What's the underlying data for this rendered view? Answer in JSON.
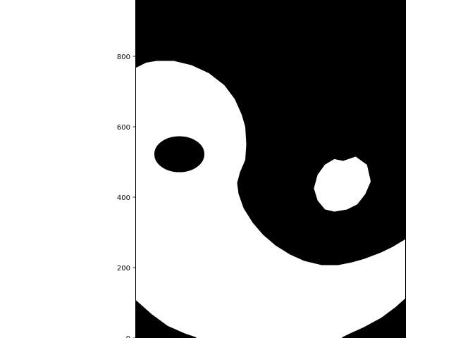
{
  "chart_data": {
    "type": "scatter",
    "title": "",
    "xlabel": "",
    "ylabel": "",
    "ylim": [
      0,
      960
    ],
    "xlim": [
      0,
      768
    ],
    "grid": false,
    "yticks": [
      0,
      200,
      400,
      600,
      800
    ],
    "ytick_labels": [
      "0",
      "200",
      "400",
      "600",
      "800"
    ],
    "background_color": "#ffffff",
    "regions": [
      {
        "name": "black-upper-left-arc",
        "color": "#000000",
        "polygon": [
          [
            0,
            860
          ],
          [
            20,
            880
          ],
          [
            60,
            905
          ],
          [
            110,
            930
          ],
          [
            170,
            948
          ],
          [
            230,
            960
          ],
          [
            0,
            960
          ]
        ]
      },
      {
        "name": "black-main-region",
        "color": "#000000",
        "polygon": [
          [
            0,
            770
          ],
          [
            30,
            785
          ],
          [
            60,
            790
          ],
          [
            110,
            790
          ],
          [
            160,
            778
          ],
          [
            210,
            755
          ],
          [
            255,
            720
          ],
          [
            285,
            680
          ],
          [
            305,
            635
          ],
          [
            315,
            600
          ],
          [
            318,
            550
          ],
          [
            315,
            505
          ],
          [
            300,
            470
          ],
          [
            292,
            440
          ],
          [
            296,
            410
          ],
          [
            310,
            370
          ],
          [
            335,
            330
          ],
          [
            365,
            295
          ],
          [
            400,
            265
          ],
          [
            440,
            240
          ],
          [
            480,
            222
          ],
          [
            530,
            210
          ],
          [
            575,
            210
          ],
          [
            615,
            218
          ],
          [
            650,
            228
          ],
          [
            695,
            245
          ],
          [
            730,
            262
          ],
          [
            768,
            285
          ],
          [
            768,
            960
          ],
          [
            180,
            960
          ],
          [
            120,
            950
          ],
          [
            70,
            930
          ],
          [
            30,
            900
          ],
          [
            0,
            870
          ]
        ]
      },
      {
        "name": "black-small-dot",
        "color": "#000000",
        "ellipse": {
          "cx": 125,
          "cy": 522,
          "rx": 68,
          "ry": 48
        }
      },
      {
        "name": "white-hole",
        "color": "#ffffff",
        "polygon": [
          [
            590,
            500
          ],
          [
            625,
            512
          ],
          [
            655,
            490
          ],
          [
            665,
            445
          ],
          [
            650,
            410
          ],
          [
            628,
            382
          ],
          [
            600,
            368
          ],
          [
            565,
            362
          ],
          [
            540,
            368
          ],
          [
            520,
            392
          ],
          [
            510,
            425
          ],
          [
            520,
            462
          ],
          [
            540,
            490
          ],
          [
            565,
            505
          ]
        ]
      },
      {
        "name": "black-lower-left",
        "color": "#000000",
        "polygon": [
          [
            0,
            0
          ],
          [
            170,
            0
          ],
          [
            140,
            10
          ],
          [
            90,
            32
          ],
          [
            45,
            65
          ],
          [
            0,
            105
          ]
        ]
      },
      {
        "name": "black-lower-right",
        "color": "#000000",
        "polygon": [
          [
            590,
            0
          ],
          [
            768,
            0
          ],
          [
            768,
            110
          ],
          [
            740,
            85
          ],
          [
            700,
            55
          ],
          [
            650,
            28
          ],
          [
            610,
            10
          ]
        ]
      }
    ]
  }
}
